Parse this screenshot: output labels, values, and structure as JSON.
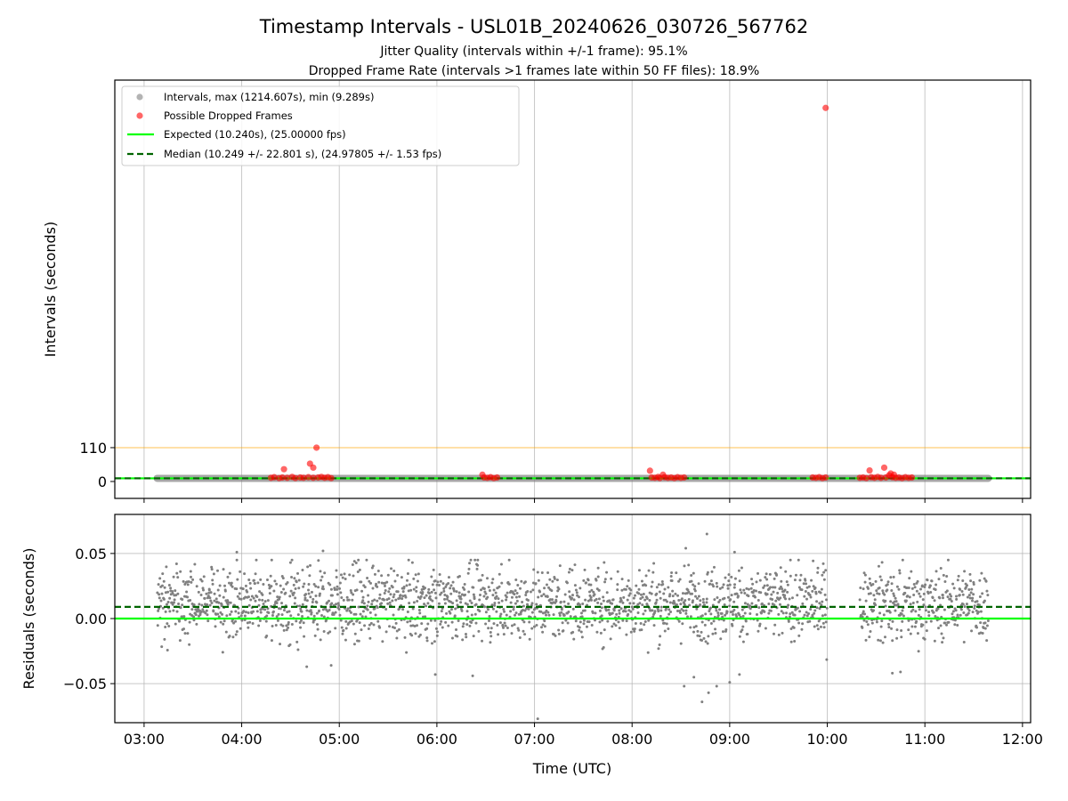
{
  "chart_data": [
    {
      "panel": "intervals",
      "type": "scatter",
      "title": "Timestamp Intervals - USL01B_20240626_030726_567762",
      "subtitle_lines": [
        "Jitter Quality (intervals within +/-1 frame): 95.1%",
        "Dropped Frame Rate (intervals >1 frames late within 50 FF files): 18.9%"
      ],
      "xlabel": "",
      "ylabel": "Intervals (seconds)",
      "xlim": [
        "02:42",
        "12:05"
      ],
      "ylim": [
        -55,
        1305
      ],
      "yticks": [
        0,
        110
      ],
      "ytick_labels": [
        "0",
        "110"
      ],
      "grid": "x",
      "legend": {
        "placement": "top-left",
        "entries": [
          {
            "label": "Intervals, max (1214.607s), min (9.289s)",
            "kind": "marker",
            "color": "#808080"
          },
          {
            "label": "Possible Dropped Frames",
            "kind": "marker",
            "color": "#ff0000"
          },
          {
            "label": "Expected (10.240s), (25.00000 fps)",
            "kind": "line",
            "color": "#00ff00"
          },
          {
            "label": "Median (10.249 +/- 22.801 s), (24.97805 +/- 1.53 fps)",
            "kind": "dashed",
            "color": "#006400"
          }
        ]
      },
      "reference_lines": [
        {
          "name": "expected",
          "y": 10.24,
          "color": "#00ff00",
          "style": "solid"
        },
        {
          "name": "median",
          "y": 10.249,
          "color": "#006400",
          "style": "dashed"
        },
        {
          "name": "threshold",
          "y": 110,
          "color": "#ffa500",
          "style": "solid"
        }
      ],
      "interval_series": {
        "color": "#808080",
        "segments": [
          {
            "x_start": "03:08",
            "x_end": "11:39",
            "y": 10.24
          }
        ]
      },
      "dropped_frames": {
        "color": "#ff0000",
        "points": [
          {
            "x": "04:18",
            "y": 12
          },
          {
            "x": "04:20",
            "y": 14
          },
          {
            "x": "04:23",
            "y": 11
          },
          {
            "x": "04:25",
            "y": 13
          },
          {
            "x": "04:26",
            "y": 40
          },
          {
            "x": "04:28",
            "y": 12
          },
          {
            "x": "04:31",
            "y": 15
          },
          {
            "x": "04:33",
            "y": 11
          },
          {
            "x": "04:36",
            "y": 13
          },
          {
            "x": "04:38",
            "y": 12
          },
          {
            "x": "04:41",
            "y": 14
          },
          {
            "x": "04:42",
            "y": 58
          },
          {
            "x": "04:44",
            "y": 45
          },
          {
            "x": "04:44",
            "y": 12
          },
          {
            "x": "04:46",
            "y": 110
          },
          {
            "x": "04:47",
            "y": 13
          },
          {
            "x": "04:49",
            "y": 15
          },
          {
            "x": "04:51",
            "y": 12
          },
          {
            "x": "04:53",
            "y": 14
          },
          {
            "x": "04:55",
            "y": 11
          },
          {
            "x": "06:28",
            "y": 22
          },
          {
            "x": "06:29",
            "y": 13
          },
          {
            "x": "06:31",
            "y": 12
          },
          {
            "x": "06:33",
            "y": 14
          },
          {
            "x": "06:35",
            "y": 11
          },
          {
            "x": "06:37",
            "y": 13
          },
          {
            "x": "08:11",
            "y": 35
          },
          {
            "x": "08:12",
            "y": 13
          },
          {
            "x": "08:14",
            "y": 12
          },
          {
            "x": "08:16",
            "y": 15
          },
          {
            "x": "08:17",
            "y": 11
          },
          {
            "x": "08:19",
            "y": 22
          },
          {
            "x": "08:20",
            "y": 14
          },
          {
            "x": "08:22",
            "y": 12
          },
          {
            "x": "08:24",
            "y": 13
          },
          {
            "x": "08:26",
            "y": 11
          },
          {
            "x": "08:28",
            "y": 14
          },
          {
            "x": "08:30",
            "y": 12
          },
          {
            "x": "08:32",
            "y": 13
          },
          {
            "x": "09:51",
            "y": 13
          },
          {
            "x": "09:53",
            "y": 12
          },
          {
            "x": "09:55",
            "y": 14
          },
          {
            "x": "09:57",
            "y": 11
          },
          {
            "x": "09:59",
            "y": 13
          },
          {
            "x": "09:59",
            "y": 1214.607
          },
          {
            "x": "10:20",
            "y": 12
          },
          {
            "x": "10:22",
            "y": 13
          },
          {
            "x": "10:24",
            "y": 11
          },
          {
            "x": "10:26",
            "y": 36
          },
          {
            "x": "10:27",
            "y": 14
          },
          {
            "x": "10:29",
            "y": 12
          },
          {
            "x": "10:31",
            "y": 15
          },
          {
            "x": "10:33",
            "y": 12
          },
          {
            "x": "10:35",
            "y": 45
          },
          {
            "x": "10:36",
            "y": 13
          },
          {
            "x": "10:38",
            "y": 20
          },
          {
            "x": "10:39",
            "y": 26
          },
          {
            "x": "10:40",
            "y": 14
          },
          {
            "x": "10:41",
            "y": 22
          },
          {
            "x": "10:42",
            "y": 12
          },
          {
            "x": "10:44",
            "y": 13
          },
          {
            "x": "10:46",
            "y": 11
          },
          {
            "x": "10:48",
            "y": 14
          },
          {
            "x": "10:50",
            "y": 12
          },
          {
            "x": "10:52",
            "y": 13
          }
        ]
      }
    },
    {
      "panel": "residuals",
      "type": "scatter",
      "xlabel": "Time (UTC)",
      "ylabel": "Residuals (seconds)",
      "xlim": [
        "02:42",
        "12:05"
      ],
      "ylim": [
        -0.08,
        0.08
      ],
      "yticks": [
        -0.05,
        0.0,
        0.05
      ],
      "ytick_labels": [
        "−0.05",
        "0.00",
        "0.05"
      ],
      "xticks": [
        "03:00",
        "04:00",
        "05:00",
        "06:00",
        "07:00",
        "08:00",
        "09:00",
        "10:00",
        "11:00",
        "12:00"
      ],
      "grid": "both",
      "reference_lines": [
        {
          "name": "zero",
          "y": 0.0,
          "color": "#00ff00",
          "style": "solid"
        },
        {
          "name": "median_offset",
          "y": 0.009,
          "color": "#006400",
          "style": "dashed"
        }
      ],
      "residual_series": {
        "color": "#808080",
        "count": 2200,
        "seed": 1214,
        "segments": [
          {
            "x_start": "03:08",
            "x_end": "10:00",
            "mean": 0.012,
            "spread": 0.019
          },
          {
            "x_start": "10:20",
            "x_end": "11:39",
            "mean": 0.011,
            "spread": 0.019
          }
        ],
        "outliers": [
          {
            "x": "07:02",
            "y": -0.077
          },
          {
            "x": "08:32",
            "y": -0.052
          },
          {
            "x": "08:38",
            "y": -0.045
          },
          {
            "x": "08:43",
            "y": -0.064
          },
          {
            "x": "08:47",
            "y": -0.057
          },
          {
            "x": "08:52",
            "y": -0.052
          },
          {
            "x": "09:00",
            "y": -0.049
          },
          {
            "x": "09:06",
            "y": -0.043
          },
          {
            "x": "08:46",
            "y": 0.065
          },
          {
            "x": "08:33",
            "y": 0.054
          },
          {
            "x": "04:50",
            "y": 0.052
          },
          {
            "x": "03:57",
            "y": 0.051
          },
          {
            "x": "09:03",
            "y": 0.051
          },
          {
            "x": "05:59",
            "y": -0.043
          },
          {
            "x": "06:22",
            "y": -0.044
          },
          {
            "x": "10:40",
            "y": -0.042
          },
          {
            "x": "10:45",
            "y": -0.041
          },
          {
            "x": "04:40",
            "y": -0.037
          },
          {
            "x": "04:55",
            "y": -0.036
          }
        ]
      }
    }
  ]
}
